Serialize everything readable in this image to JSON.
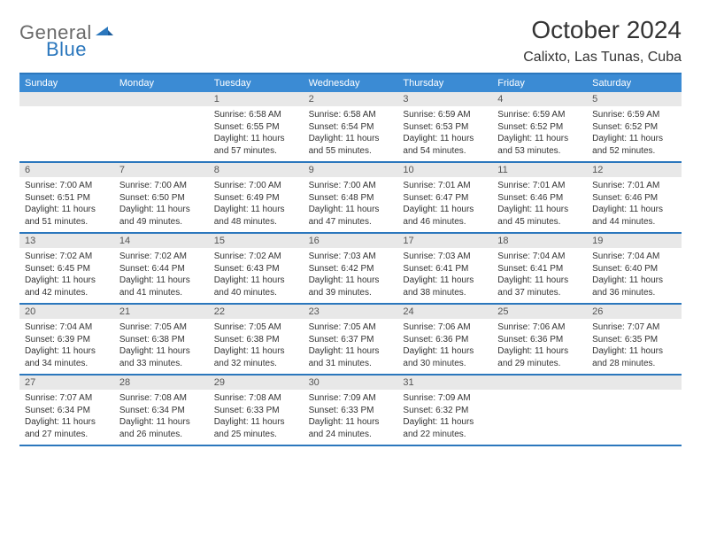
{
  "logo": {
    "general": "General",
    "blue": "Blue"
  },
  "title": "October 2024",
  "location": "Calixto, Las Tunas, Cuba",
  "colors": {
    "accent": "#2b77bd",
    "header_bg": "#3b8bd4",
    "daynum_bg": "#e8e8e8",
    "text": "#333333",
    "logo_gray": "#6a6a6a"
  },
  "day_names": [
    "Sunday",
    "Monday",
    "Tuesday",
    "Wednesday",
    "Thursday",
    "Friday",
    "Saturday"
  ],
  "weeks": [
    [
      {
        "n": "",
        "sr": "",
        "ss": "",
        "dl": ""
      },
      {
        "n": "",
        "sr": "",
        "ss": "",
        "dl": ""
      },
      {
        "n": "1",
        "sr": "Sunrise: 6:58 AM",
        "ss": "Sunset: 6:55 PM",
        "dl": "Daylight: 11 hours and 57 minutes."
      },
      {
        "n": "2",
        "sr": "Sunrise: 6:58 AM",
        "ss": "Sunset: 6:54 PM",
        "dl": "Daylight: 11 hours and 55 minutes."
      },
      {
        "n": "3",
        "sr": "Sunrise: 6:59 AM",
        "ss": "Sunset: 6:53 PM",
        "dl": "Daylight: 11 hours and 54 minutes."
      },
      {
        "n": "4",
        "sr": "Sunrise: 6:59 AM",
        "ss": "Sunset: 6:52 PM",
        "dl": "Daylight: 11 hours and 53 minutes."
      },
      {
        "n": "5",
        "sr": "Sunrise: 6:59 AM",
        "ss": "Sunset: 6:52 PM",
        "dl": "Daylight: 11 hours and 52 minutes."
      }
    ],
    [
      {
        "n": "6",
        "sr": "Sunrise: 7:00 AM",
        "ss": "Sunset: 6:51 PM",
        "dl": "Daylight: 11 hours and 51 minutes."
      },
      {
        "n": "7",
        "sr": "Sunrise: 7:00 AM",
        "ss": "Sunset: 6:50 PM",
        "dl": "Daylight: 11 hours and 49 minutes."
      },
      {
        "n": "8",
        "sr": "Sunrise: 7:00 AM",
        "ss": "Sunset: 6:49 PM",
        "dl": "Daylight: 11 hours and 48 minutes."
      },
      {
        "n": "9",
        "sr": "Sunrise: 7:00 AM",
        "ss": "Sunset: 6:48 PM",
        "dl": "Daylight: 11 hours and 47 minutes."
      },
      {
        "n": "10",
        "sr": "Sunrise: 7:01 AM",
        "ss": "Sunset: 6:47 PM",
        "dl": "Daylight: 11 hours and 46 minutes."
      },
      {
        "n": "11",
        "sr": "Sunrise: 7:01 AM",
        "ss": "Sunset: 6:46 PM",
        "dl": "Daylight: 11 hours and 45 minutes."
      },
      {
        "n": "12",
        "sr": "Sunrise: 7:01 AM",
        "ss": "Sunset: 6:46 PM",
        "dl": "Daylight: 11 hours and 44 minutes."
      }
    ],
    [
      {
        "n": "13",
        "sr": "Sunrise: 7:02 AM",
        "ss": "Sunset: 6:45 PM",
        "dl": "Daylight: 11 hours and 42 minutes."
      },
      {
        "n": "14",
        "sr": "Sunrise: 7:02 AM",
        "ss": "Sunset: 6:44 PM",
        "dl": "Daylight: 11 hours and 41 minutes."
      },
      {
        "n": "15",
        "sr": "Sunrise: 7:02 AM",
        "ss": "Sunset: 6:43 PM",
        "dl": "Daylight: 11 hours and 40 minutes."
      },
      {
        "n": "16",
        "sr": "Sunrise: 7:03 AM",
        "ss": "Sunset: 6:42 PM",
        "dl": "Daylight: 11 hours and 39 minutes."
      },
      {
        "n": "17",
        "sr": "Sunrise: 7:03 AM",
        "ss": "Sunset: 6:41 PM",
        "dl": "Daylight: 11 hours and 38 minutes."
      },
      {
        "n": "18",
        "sr": "Sunrise: 7:04 AM",
        "ss": "Sunset: 6:41 PM",
        "dl": "Daylight: 11 hours and 37 minutes."
      },
      {
        "n": "19",
        "sr": "Sunrise: 7:04 AM",
        "ss": "Sunset: 6:40 PM",
        "dl": "Daylight: 11 hours and 36 minutes."
      }
    ],
    [
      {
        "n": "20",
        "sr": "Sunrise: 7:04 AM",
        "ss": "Sunset: 6:39 PM",
        "dl": "Daylight: 11 hours and 34 minutes."
      },
      {
        "n": "21",
        "sr": "Sunrise: 7:05 AM",
        "ss": "Sunset: 6:38 PM",
        "dl": "Daylight: 11 hours and 33 minutes."
      },
      {
        "n": "22",
        "sr": "Sunrise: 7:05 AM",
        "ss": "Sunset: 6:38 PM",
        "dl": "Daylight: 11 hours and 32 minutes."
      },
      {
        "n": "23",
        "sr": "Sunrise: 7:05 AM",
        "ss": "Sunset: 6:37 PM",
        "dl": "Daylight: 11 hours and 31 minutes."
      },
      {
        "n": "24",
        "sr": "Sunrise: 7:06 AM",
        "ss": "Sunset: 6:36 PM",
        "dl": "Daylight: 11 hours and 30 minutes."
      },
      {
        "n": "25",
        "sr": "Sunrise: 7:06 AM",
        "ss": "Sunset: 6:36 PM",
        "dl": "Daylight: 11 hours and 29 minutes."
      },
      {
        "n": "26",
        "sr": "Sunrise: 7:07 AM",
        "ss": "Sunset: 6:35 PM",
        "dl": "Daylight: 11 hours and 28 minutes."
      }
    ],
    [
      {
        "n": "27",
        "sr": "Sunrise: 7:07 AM",
        "ss": "Sunset: 6:34 PM",
        "dl": "Daylight: 11 hours and 27 minutes."
      },
      {
        "n": "28",
        "sr": "Sunrise: 7:08 AM",
        "ss": "Sunset: 6:34 PM",
        "dl": "Daylight: 11 hours and 26 minutes."
      },
      {
        "n": "29",
        "sr": "Sunrise: 7:08 AM",
        "ss": "Sunset: 6:33 PM",
        "dl": "Daylight: 11 hours and 25 minutes."
      },
      {
        "n": "30",
        "sr": "Sunrise: 7:09 AM",
        "ss": "Sunset: 6:33 PM",
        "dl": "Daylight: 11 hours and 24 minutes."
      },
      {
        "n": "31",
        "sr": "Sunrise: 7:09 AM",
        "ss": "Sunset: 6:32 PM",
        "dl": "Daylight: 11 hours and 22 minutes."
      },
      {
        "n": "",
        "sr": "",
        "ss": "",
        "dl": ""
      },
      {
        "n": "",
        "sr": "",
        "ss": "",
        "dl": ""
      }
    ]
  ]
}
